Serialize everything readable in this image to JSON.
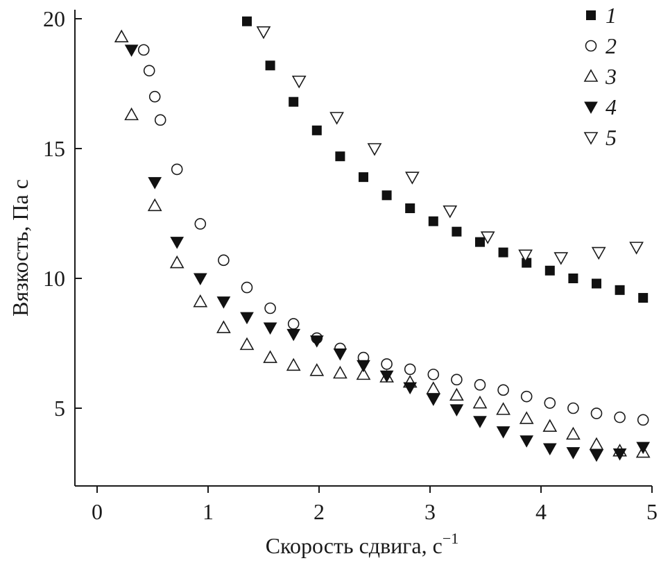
{
  "chart_data": {
    "type": "scatter",
    "xlabel": "Скорость сдвига, с",
    "xlabel_superscript": "−1",
    "ylabel": "Вязкость, Па с",
    "xlim": [
      -0.2,
      5.0
    ],
    "ylim": [
      2.6,
      20.2
    ],
    "xticks": [
      0,
      1,
      2,
      3,
      4,
      5
    ],
    "yticks": [
      5,
      10,
      15,
      20
    ],
    "grid": false,
    "legend_position": "top-right",
    "series": [
      {
        "name": "1",
        "marker": "square-filled",
        "x": [
          1.35,
          1.56,
          1.77,
          1.98,
          2.19,
          2.4,
          2.61,
          2.82,
          3.03,
          3.24,
          3.45,
          3.66,
          3.87,
          4.08,
          4.29,
          4.5,
          4.71,
          4.92
        ],
        "y": [
          19.9,
          18.2,
          16.8,
          15.7,
          14.7,
          13.9,
          13.2,
          12.7,
          12.2,
          11.8,
          11.4,
          11.0,
          10.6,
          10.3,
          10.0,
          9.8,
          9.55,
          9.25
        ]
      },
      {
        "name": "2",
        "marker": "circle-open",
        "x": [
          0.42,
          0.47,
          0.52,
          0.57,
          0.72,
          0.93,
          1.14,
          1.35,
          1.56,
          1.77,
          1.98,
          2.19,
          2.4,
          2.61,
          2.82,
          3.03,
          3.24,
          3.45,
          3.66,
          3.87,
          4.08,
          4.29,
          4.5,
          4.71,
          4.92
        ],
        "y": [
          18.8,
          18.0,
          17.0,
          16.1,
          14.2,
          12.1,
          10.7,
          9.65,
          8.85,
          8.25,
          7.7,
          7.3,
          6.95,
          6.7,
          6.5,
          6.3,
          6.1,
          5.9,
          5.7,
          5.45,
          5.2,
          5.0,
          4.8,
          4.65,
          4.55
        ]
      },
      {
        "name": "3",
        "marker": "triangle-up-open",
        "x": [
          0.22,
          0.31,
          0.52,
          0.72,
          0.93,
          1.14,
          1.35,
          1.56,
          1.77,
          1.98,
          2.19,
          2.4,
          2.61,
          2.82,
          3.03,
          3.24,
          3.45,
          3.66,
          3.87,
          4.08,
          4.29,
          4.5,
          4.71,
          4.92
        ],
        "y": [
          19.3,
          16.3,
          12.8,
          10.6,
          9.1,
          8.1,
          7.45,
          6.95,
          6.65,
          6.45,
          6.35,
          6.3,
          6.2,
          6.0,
          5.75,
          5.5,
          5.2,
          4.95,
          4.6,
          4.3,
          4.0,
          3.6,
          3.35,
          3.3
        ]
      },
      {
        "name": "4",
        "marker": "triangle-down-filled",
        "x": [
          0.31,
          0.52,
          0.72,
          0.93,
          1.14,
          1.35,
          1.56,
          1.77,
          1.98,
          2.19,
          2.4,
          2.61,
          2.82,
          3.03,
          3.24,
          3.45,
          3.66,
          3.87,
          4.08,
          4.29,
          4.5,
          4.71,
          4.92
        ],
        "y": [
          18.8,
          13.7,
          11.4,
          10.0,
          9.1,
          8.5,
          8.1,
          7.85,
          7.6,
          7.1,
          6.65,
          6.25,
          5.8,
          5.35,
          4.95,
          4.5,
          4.1,
          3.75,
          3.45,
          3.3,
          3.2,
          3.25,
          3.5
        ]
      },
      {
        "name": "5",
        "marker": "triangle-down-open",
        "x": [
          1.5,
          1.82,
          2.16,
          2.5,
          2.84,
          3.18,
          3.52,
          3.86,
          4.18,
          4.52,
          4.86
        ],
        "y": [
          19.5,
          17.6,
          16.2,
          15.0,
          13.9,
          12.6,
          11.6,
          10.9,
          10.8,
          11.0,
          11.2
        ]
      }
    ]
  }
}
